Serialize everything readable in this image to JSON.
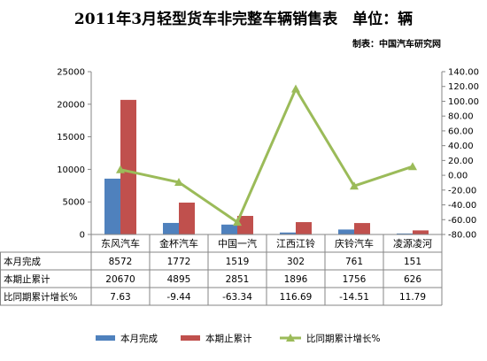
{
  "chart_data": {
    "type": "bar",
    "title": "2011年3月轻型货车非完整车辆销售表　单位：辆",
    "subtitle": "制表：中国汽车研究网",
    "categories": [
      "东风汽车",
      "金杯汽车",
      "中国一汽",
      "江西江铃",
      "庆铃汽车",
      "凌源凌河"
    ],
    "series": [
      {
        "name": "本月完成",
        "type": "bar",
        "axis": "left",
        "color": "#4f81bd",
        "values": [
          8572,
          1772,
          1519,
          302,
          761,
          151
        ]
      },
      {
        "name": "本期止累计",
        "type": "bar",
        "axis": "left",
        "color": "#c0504d",
        "values": [
          20670,
          4895,
          2851,
          1896,
          1756,
          626
        ]
      },
      {
        "name": "比同期累计增长%",
        "type": "line",
        "axis": "right",
        "color": "#9bbb59",
        "values": [
          7.63,
          -9.44,
          -63.34,
          116.69,
          -14.51,
          11.79
        ]
      }
    ],
    "y_left": {
      "min": 0,
      "max": 25000,
      "step": 5000,
      "ticks": [
        "0",
        "5000",
        "10000",
        "15000",
        "20000",
        "25000"
      ]
    },
    "y_right": {
      "min": -80,
      "max": 140,
      "step": 20,
      "ticks": [
        "-80.00",
        "-60.00",
        "-40.00",
        "-20.00",
        "0.00",
        "20.00",
        "40.00",
        "60.00",
        "80.00",
        "100.00",
        "120.00",
        "140.00"
      ]
    },
    "table": {
      "rows": [
        {
          "label": "本月完成",
          "cells": [
            "8572",
            "1772",
            "1519",
            "302",
            "761",
            "151"
          ]
        },
        {
          "label": "本期止累计",
          "cells": [
            "20670",
            "4895",
            "2851",
            "1896",
            "1756",
            "626"
          ]
        },
        {
          "label": "比同期累计增长%",
          "cells": [
            "7.63",
            "-9.44",
            "-63.34",
            "116.69",
            "-14.51",
            "11.79"
          ]
        }
      ]
    },
    "legend": {
      "position": "bottom",
      "items": [
        "本月完成",
        "本期止累计",
        "比同期累计增长%"
      ]
    },
    "grid": false
  }
}
